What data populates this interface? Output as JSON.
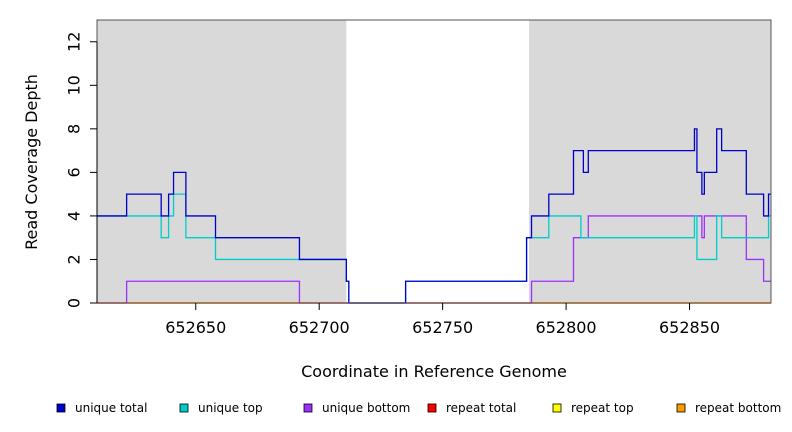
{
  "chart_data": {
    "type": "line",
    "title": "",
    "xlabel": "Coordinate in Reference Genome",
    "ylabel": "Read Coverage Depth",
    "xlim": [
      652610,
      652883
    ],
    "ylim": [
      0,
      13
    ],
    "xticks": [
      652650,
      652700,
      652750,
      652800,
      652850
    ],
    "yticks": [
      0,
      2,
      4,
      6,
      8,
      10,
      12
    ],
    "grid": false,
    "legend_position": "bottom",
    "shaded_regions": [
      {
        "x": [
          652610,
          652711
        ],
        "color": "#d9d9d9"
      },
      {
        "x": [
          652785,
          652883
        ],
        "color": "#d9d9d9"
      }
    ],
    "series": [
      {
        "name": "unique total",
        "color": "#0000cc",
        "step": true,
        "points": [
          [
            652610,
            4
          ],
          [
            652622,
            5
          ],
          [
            652636,
            4
          ],
          [
            652639,
            5
          ],
          [
            652641,
            6
          ],
          [
            652646,
            4
          ],
          [
            652658,
            3
          ],
          [
            652692,
            2
          ],
          [
            652711,
            1
          ],
          [
            652712,
            0
          ],
          [
            652735,
            1
          ],
          [
            652784,
            3
          ],
          [
            652786,
            4
          ],
          [
            652793,
            5
          ],
          [
            652803,
            7
          ],
          [
            652807,
            6
          ],
          [
            652809,
            7
          ],
          [
            652852,
            8
          ],
          [
            652853,
            6
          ],
          [
            652855,
            5
          ],
          [
            652856,
            6
          ],
          [
            652861,
            8
          ],
          [
            652863,
            7
          ],
          [
            652873,
            5
          ],
          [
            652880,
            4
          ],
          [
            652882,
            5
          ]
        ]
      },
      {
        "name": "unique top",
        "color": "#00cccc",
        "step": true,
        "points": [
          [
            652610,
            4
          ],
          [
            652636,
            3
          ],
          [
            652639,
            4
          ],
          [
            652641,
            5
          ],
          [
            652646,
            3
          ],
          [
            652658,
            2
          ],
          [
            652692,
            2
          ],
          [
            652711,
            1
          ],
          [
            652712,
            0
          ],
          [
            652735,
            1
          ],
          [
            652784,
            3
          ],
          [
            652786,
            3
          ],
          [
            652793,
            4
          ],
          [
            652806,
            3
          ],
          [
            652852,
            4
          ],
          [
            652853,
            2
          ],
          [
            652861,
            4
          ],
          [
            652863,
            3
          ],
          [
            652882,
            4
          ]
        ]
      },
      {
        "name": "unique bottom",
        "color": "#9b30ff",
        "step": true,
        "points": [
          [
            652610,
            0
          ],
          [
            652622,
            1
          ],
          [
            652692,
            0
          ],
          [
            652786,
            1
          ],
          [
            652803,
            3
          ],
          [
            652809,
            4
          ],
          [
            652855,
            3
          ],
          [
            652856,
            4
          ],
          [
            652873,
            2
          ],
          [
            652880,
            1
          ]
        ]
      },
      {
        "name": "repeat total",
        "color": "#ff0000",
        "step": true,
        "points": [
          [
            652610,
            0
          ],
          [
            652883,
            0
          ]
        ]
      },
      {
        "name": "repeat top",
        "color": "#ffff00",
        "step": true,
        "points": [
          [
            652610,
            0
          ],
          [
            652883,
            0
          ]
        ]
      },
      {
        "name": "repeat bottom",
        "color": "#ff9900",
        "step": true,
        "points": [
          [
            652610,
            0
          ],
          [
            652883,
            0
          ]
        ]
      }
    ]
  }
}
